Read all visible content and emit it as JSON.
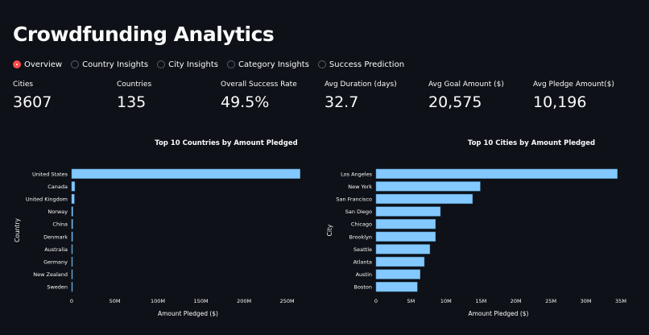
{
  "page": {
    "title": "Crowdfunding Analytics"
  },
  "nav": {
    "options": [
      {
        "label": "Overview",
        "selected": true
      },
      {
        "label": "Country Insights",
        "selected": false
      },
      {
        "label": "City Insights",
        "selected": false
      },
      {
        "label": "Category Insights",
        "selected": false
      },
      {
        "label": "Success Prediction",
        "selected": false
      }
    ]
  },
  "metrics": [
    {
      "label": "Cities",
      "value": "3607"
    },
    {
      "label": "Countries",
      "value": "135"
    },
    {
      "label": "Overall Success Rate",
      "value": "49.5%"
    },
    {
      "label": "Avg Duration (days)",
      "value": "32.7"
    },
    {
      "label": "Avg Goal Amount ($)",
      "value": "20,575"
    },
    {
      "label": "Avg Pledge Amount($)",
      "value": "10,196"
    }
  ],
  "colors": {
    "background": "#0e1117",
    "bar": "#83c9ff",
    "accent": "#ff4b4b",
    "text": "#fafafa"
  },
  "chart_data": [
    {
      "type": "bar",
      "orientation": "horizontal",
      "title": "Top 10 Countries by Amount Pledged",
      "xlabel": "Amount Pledged ($)",
      "ylabel": "Country",
      "categories": [
        "United States",
        "Canada",
        "United Kingdom",
        "Norway",
        "China",
        "Denmark",
        "Australia",
        "Germany",
        "New Zealand",
        "Sweden"
      ],
      "values": [
        265000000,
        3600000,
        3100000,
        1400000,
        1300000,
        1100000,
        900000,
        800000,
        700000,
        600000
      ],
      "xlim": [
        0,
        270000000
      ],
      "xticks": [
        {
          "value": 0,
          "label": "0"
        },
        {
          "value": 50000000,
          "label": "50M"
        },
        {
          "value": 100000000,
          "label": "100M"
        },
        {
          "value": 150000000,
          "label": "150M"
        },
        {
          "value": 200000000,
          "label": "200M"
        },
        {
          "value": 250000000,
          "label": "250M"
        }
      ]
    },
    {
      "type": "bar",
      "orientation": "horizontal",
      "title": "Top 10 Cities by Amount Pledged",
      "xlabel": "Amount Pledged ($)",
      "ylabel": "City",
      "categories": [
        "Los Angeles",
        "New York",
        "San Francisco",
        "San Diego",
        "Chicago",
        "Brooklyn",
        "Seattle",
        "Atlanta",
        "Austin",
        "Boston"
      ],
      "values": [
        34500000,
        14900000,
        13800000,
        9200000,
        8500000,
        8500000,
        7700000,
        6900000,
        6300000,
        5900000
      ],
      "xlim": [
        0,
        35000000
      ],
      "xticks": [
        {
          "value": 0,
          "label": "0"
        },
        {
          "value": 5000000,
          "label": "5M"
        },
        {
          "value": 10000000,
          "label": "10M"
        },
        {
          "value": 15000000,
          "label": "15M"
        },
        {
          "value": 20000000,
          "label": "20M"
        },
        {
          "value": 25000000,
          "label": "25M"
        },
        {
          "value": 30000000,
          "label": "30M"
        },
        {
          "value": 35000000,
          "label": "35M"
        }
      ]
    }
  ]
}
